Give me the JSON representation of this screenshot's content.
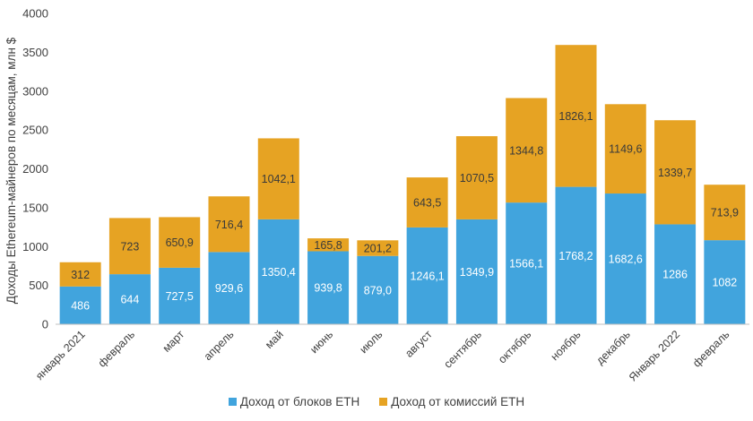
{
  "chart_data": {
    "type": "stacked-bar",
    "ylabel": "Доходы Ethereum-майнеров по месяцам, млн $",
    "ylim": [
      0,
      4000
    ],
    "yticks": [
      0,
      500,
      1000,
      1500,
      2000,
      2500,
      3000,
      3500,
      4000
    ],
    "categories": [
      "январь 2021",
      "февраль",
      "март",
      "апрель",
      "май",
      "июнь",
      "июль",
      "август",
      "сентябрь",
      "октябрь",
      "ноябрь",
      "декабрь",
      "Январь 2022",
      "февраль"
    ],
    "series": [
      {
        "name": "Доход от блоков ETH",
        "color": "#41a4dd",
        "label_color": "#ffffff",
        "values": [
          486,
          644,
          727.5,
          929.6,
          1350.4,
          939.8,
          879.0,
          1246.1,
          1349.9,
          1566.1,
          1768.2,
          1682.6,
          1286,
          1082
        ],
        "labels": [
          "486",
          "644",
          "727,5",
          "929,6",
          "1350,4",
          "939,8",
          "879,0",
          "1246,1",
          "1349,9",
          "1566,1",
          "1768,2",
          "1682,6",
          "1286",
          "1082"
        ]
      },
      {
        "name": "Доход от комиссий ETH",
        "color": "#e6a323",
        "label_color": "#3a3a3a",
        "values": [
          312,
          723,
          650.9,
          716.4,
          1042.1,
          165.8,
          201.2,
          643.5,
          1070.5,
          1344.8,
          1826.1,
          1149.6,
          1339.7,
          713.9
        ],
        "labels": [
          "312",
          "723",
          "650,9",
          "716,4",
          "1042,1",
          "165,8",
          "201,2",
          "643,5",
          "1070,5",
          "1344,8",
          "1826,1",
          "1149,6",
          "1339,7",
          "713,9"
        ]
      }
    ],
    "legend_position": "bottom",
    "grid": false
  }
}
